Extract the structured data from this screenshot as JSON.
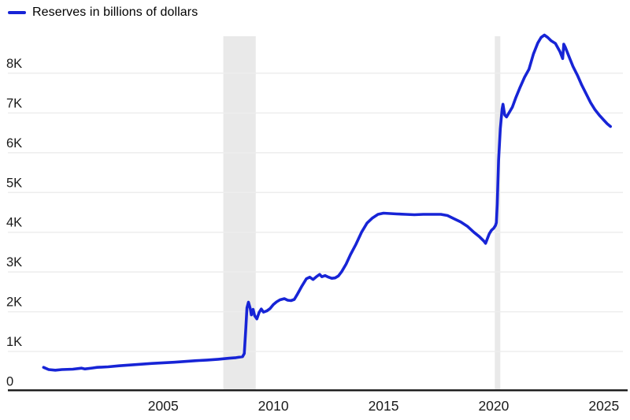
{
  "legend": {
    "label": "Reserves in billions of dollars",
    "swatch_color": "#1724d6"
  },
  "chart_data": {
    "type": "line",
    "title": "",
    "xlabel": "",
    "ylabel": "Reserves in billions of dollars",
    "legend_position": "top-left",
    "grid": "horizontal",
    "x_domain": [
      1997.95,
      2025.9
    ],
    "y_domain": [
      0,
      8950
    ],
    "x_ticks": [
      {
        "value": 2005,
        "label": "2005"
      },
      {
        "value": 2010,
        "label": "2010"
      },
      {
        "value": 2015,
        "label": "2015"
      },
      {
        "value": 2020,
        "label": "2020"
      },
      {
        "value": 2025,
        "label": "2025"
      }
    ],
    "y_ticks": [
      {
        "value": 0,
        "label": "0"
      },
      {
        "value": 1000,
        "label": "1K"
      },
      {
        "value": 2000,
        "label": "2K"
      },
      {
        "value": 3000,
        "label": "3K"
      },
      {
        "value": 4000,
        "label": "4K"
      },
      {
        "value": 5000,
        "label": "5K"
      },
      {
        "value": 6000,
        "label": "6K"
      },
      {
        "value": 7000,
        "label": "7K"
      },
      {
        "value": 8000,
        "label": "8K"
      }
    ],
    "bands": [
      {
        "x0": 2007.73,
        "x1": 2009.2
      },
      {
        "x0": 2020.05,
        "x1": 2020.3
      }
    ],
    "colors": {
      "line": "#1724d6",
      "grid": "#ededed",
      "band": "#e9e9e9",
      "axis": "#161616",
      "text": "#1a1a1a"
    },
    "series": [
      {
        "name": "Reserves in billions of dollars",
        "color": "#1724d6",
        "points": [
          [
            1999.57,
            600
          ],
          [
            1999.8,
            545
          ],
          [
            2000.1,
            530
          ],
          [
            2000.4,
            545
          ],
          [
            2000.9,
            555
          ],
          [
            2001.3,
            580
          ],
          [
            2001.45,
            560
          ],
          [
            2001.8,
            585
          ],
          [
            2002.0,
            600
          ],
          [
            2002.5,
            615
          ],
          [
            2003.0,
            640
          ],
          [
            2003.5,
            660
          ],
          [
            2004.0,
            680
          ],
          [
            2004.5,
            700
          ],
          [
            2005.0,
            715
          ],
          [
            2005.5,
            730
          ],
          [
            2006.0,
            750
          ],
          [
            2006.5,
            770
          ],
          [
            2007.0,
            785
          ],
          [
            2007.5,
            805
          ],
          [
            2008.0,
            830
          ],
          [
            2008.3,
            845
          ],
          [
            2008.6,
            870
          ],
          [
            2008.68,
            950
          ],
          [
            2008.75,
            1600
          ],
          [
            2008.8,
            2100
          ],
          [
            2008.87,
            2240
          ],
          [
            2008.95,
            2080
          ],
          [
            2009.0,
            1920
          ],
          [
            2009.08,
            2060
          ],
          [
            2009.15,
            1900
          ],
          [
            2009.25,
            1820
          ],
          [
            2009.35,
            1980
          ],
          [
            2009.45,
            2070
          ],
          [
            2009.55,
            1990
          ],
          [
            2009.7,
            2020
          ],
          [
            2009.85,
            2080
          ],
          [
            2010.0,
            2180
          ],
          [
            2010.15,
            2250
          ],
          [
            2010.3,
            2300
          ],
          [
            2010.5,
            2330
          ],
          [
            2010.65,
            2290
          ],
          [
            2010.8,
            2280
          ],
          [
            2010.95,
            2310
          ],
          [
            2011.1,
            2450
          ],
          [
            2011.3,
            2650
          ],
          [
            2011.5,
            2830
          ],
          [
            2011.65,
            2870
          ],
          [
            2011.8,
            2810
          ],
          [
            2011.95,
            2880
          ],
          [
            2012.1,
            2940
          ],
          [
            2012.2,
            2880
          ],
          [
            2012.35,
            2910
          ],
          [
            2012.5,
            2870
          ],
          [
            2012.65,
            2840
          ],
          [
            2012.8,
            2850
          ],
          [
            2012.95,
            2900
          ],
          [
            2013.1,
            3010
          ],
          [
            2013.3,
            3200
          ],
          [
            2013.5,
            3440
          ],
          [
            2013.75,
            3700
          ],
          [
            2014.0,
            4000
          ],
          [
            2014.25,
            4230
          ],
          [
            2014.5,
            4360
          ],
          [
            2014.75,
            4450
          ],
          [
            2015.0,
            4480
          ],
          [
            2015.3,
            4470
          ],
          [
            2015.6,
            4460
          ],
          [
            2016.0,
            4450
          ],
          [
            2016.4,
            4440
          ],
          [
            2016.8,
            4450
          ],
          [
            2017.2,
            4450
          ],
          [
            2017.6,
            4450
          ],
          [
            2017.9,
            4420
          ],
          [
            2018.2,
            4340
          ],
          [
            2018.5,
            4260
          ],
          [
            2018.8,
            4150
          ],
          [
            2019.1,
            4000
          ],
          [
            2019.35,
            3890
          ],
          [
            2019.55,
            3780
          ],
          [
            2019.63,
            3720
          ],
          [
            2019.72,
            3850
          ],
          [
            2019.8,
            3960
          ],
          [
            2019.9,
            4050
          ],
          [
            2020.0,
            4100
          ],
          [
            2020.08,
            4170
          ],
          [
            2020.12,
            4240
          ],
          [
            2020.16,
            4700
          ],
          [
            2020.22,
            5800
          ],
          [
            2020.3,
            6600
          ],
          [
            2020.38,
            7100
          ],
          [
            2020.42,
            7220
          ],
          [
            2020.5,
            6950
          ],
          [
            2020.58,
            6900
          ],
          [
            2020.7,
            7010
          ],
          [
            2020.85,
            7150
          ],
          [
            2021.0,
            7380
          ],
          [
            2021.2,
            7650
          ],
          [
            2021.4,
            7900
          ],
          [
            2021.6,
            8100
          ],
          [
            2021.8,
            8480
          ],
          [
            2022.0,
            8760
          ],
          [
            2022.15,
            8900
          ],
          [
            2022.3,
            8960
          ],
          [
            2022.45,
            8900
          ],
          [
            2022.6,
            8820
          ],
          [
            2022.8,
            8750
          ],
          [
            2023.0,
            8550
          ],
          [
            2023.13,
            8370
          ],
          [
            2023.18,
            8730
          ],
          [
            2023.25,
            8650
          ],
          [
            2023.4,
            8440
          ],
          [
            2023.6,
            8170
          ],
          [
            2023.8,
            7950
          ],
          [
            2024.0,
            7700
          ],
          [
            2024.2,
            7480
          ],
          [
            2024.4,
            7260
          ],
          [
            2024.6,
            7080
          ],
          [
            2024.8,
            6940
          ],
          [
            2025.0,
            6820
          ],
          [
            2025.15,
            6730
          ],
          [
            2025.3,
            6660
          ]
        ]
      }
    ]
  }
}
